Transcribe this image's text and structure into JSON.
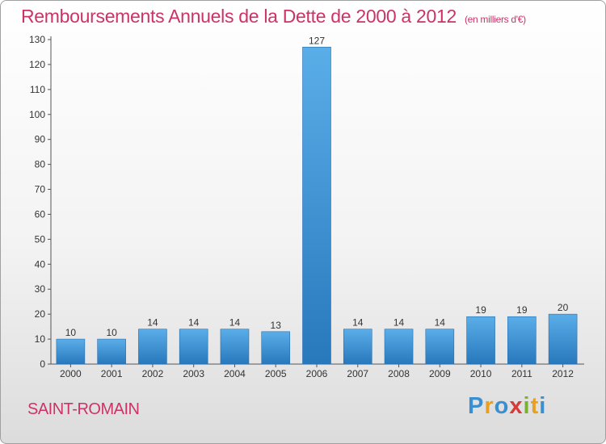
{
  "title": "Remboursements Annuels de la Dette de 2000 à 2012",
  "title_unit": "(en milliers d'€)",
  "city": "SAINT-ROMAIN",
  "logo": {
    "text": "Proxiti",
    "letters": [
      "P",
      "r",
      "o",
      "x",
      "i",
      "t",
      "i"
    ]
  },
  "colors": {
    "title": "#cc3366",
    "bar_top": "#5aaee8",
    "bar_bottom": "#2878bc"
  },
  "chart_data": {
    "type": "bar",
    "categories": [
      "2000",
      "2001",
      "2002",
      "2003",
      "2004",
      "2005",
      "2006",
      "2007",
      "2008",
      "2009",
      "2010",
      "2011",
      "2012"
    ],
    "values": [
      10,
      10,
      14,
      14,
      14,
      13,
      127,
      14,
      14,
      14,
      19,
      19,
      20
    ],
    "data_labels": [
      "10",
      "10",
      "14",
      "14",
      "14",
      "13",
      "127",
      "14",
      "14",
      "14",
      "19",
      "19",
      "20"
    ],
    "yticks": [
      "0",
      "10",
      "20",
      "30",
      "40",
      "50",
      "60",
      "70",
      "80",
      "90",
      "100",
      "110",
      "120",
      "130"
    ],
    "ylim": [
      0,
      130
    ],
    "grid": false,
    "legend": false
  }
}
